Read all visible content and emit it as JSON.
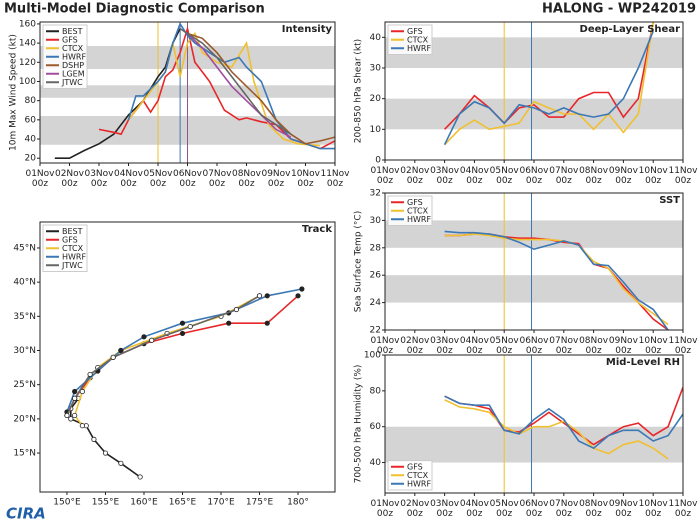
{
  "header": {
    "title": "Multi-Model Diagnostic Comparison",
    "storm": "HALONG - WP242019",
    "logo": "CIRA"
  },
  "chart_data": [
    {
      "type": "line",
      "title": "Intensity",
      "ylabel": "10m Max Wind Speed (kt)",
      "legend": "upper-left",
      "xlim": [
        0,
        240
      ],
      "ylim": [
        15,
        162
      ],
      "yticks": [
        20,
        40,
        60,
        80,
        100,
        120,
        140,
        160
      ],
      "bands": [
        [
          34,
          64
        ],
        [
          83,
          96
        ],
        [
          113,
          137
        ]
      ],
      "xticks": [
        {
          "value": 0,
          "label": "01Nov 00z"
        },
        {
          "value": 24,
          "label": "02Nov 00z"
        },
        {
          "value": 48,
          "label": "03Nov 00z"
        },
        {
          "value": 72,
          "label": "04Nov 00z"
        },
        {
          "value": 96,
          "label": "05Nov 00z"
        },
        {
          "value": 120,
          "label": "06Nov 00z"
        },
        {
          "value": 144,
          "label": "07Nov 00z"
        },
        {
          "value": 168,
          "label": "08Nov 00z"
        },
        {
          "value": 192,
          "label": "09Nov 00z"
        },
        {
          "value": 216,
          "label": "10Nov 00z"
        },
        {
          "value": 240,
          "label": "11Nov 00z"
        }
      ],
      "vlines": [
        {
          "x": 96,
          "color": "#f0c030"
        },
        {
          "x": 114,
          "color": "#3b78b5"
        },
        {
          "x": 120,
          "color": "#8a5a8a"
        }
      ],
      "series": [
        {
          "name": "BEST",
          "color": "#222222",
          "x": [
            12,
            24,
            36,
            48,
            60,
            72,
            84,
            96,
            102,
            108,
            114
          ],
          "values": [
            20,
            20,
            28,
            35,
            45,
            65,
            80,
            105,
            115,
            140,
            155
          ]
        },
        {
          "name": "GFS",
          "color": "#e8262a",
          "x": [
            48,
            60,
            66,
            72,
            84,
            90,
            96,
            102,
            108,
            114,
            120,
            126,
            132,
            138,
            150,
            162,
            168,
            180,
            192,
            204,
            216,
            228,
            240
          ],
          "values": [
            50,
            47,
            45,
            60,
            80,
            68,
            80,
            105,
            112,
            130,
            155,
            120,
            110,
            100,
            70,
            60,
            62,
            58,
            55,
            40,
            35,
            30,
            38
          ]
        },
        {
          "name": "CTCX",
          "color": "#f0c030",
          "x": [
            72,
            84,
            96,
            102,
            108,
            114,
            120,
            126,
            132,
            144,
            156,
            168,
            174,
            186,
            198,
            210,
            228
          ],
          "values": [
            60,
            80,
            100,
            110,
            140,
            105,
            140,
            150,
            130,
            120,
            115,
            140,
            100,
            55,
            40,
            35,
            33
          ]
        },
        {
          "name": "HWRF",
          "color": "#3b78b5",
          "x": [
            72,
            78,
            84,
            96,
            102,
            108,
            114,
            120,
            126,
            138,
            150,
            162,
            168,
            180,
            192,
            204,
            216,
            228,
            240
          ],
          "values": [
            60,
            85,
            85,
            100,
            110,
            140,
            160,
            148,
            140,
            130,
            120,
            125,
            115,
            100,
            60,
            40,
            35,
            30,
            30
          ]
        },
        {
          "name": "DSHP",
          "color": "#9c5a2a",
          "x": [
            120,
            132,
            144,
            156,
            168,
            180,
            192,
            204,
            216,
            228,
            240
          ],
          "values": [
            150,
            145,
            130,
            110,
            95,
            80,
            60,
            45,
            35,
            38,
            42
          ]
        },
        {
          "name": "LGEM",
          "color": "#a04ca0",
          "x": [
            120,
            132,
            144,
            156,
            168,
            180,
            192,
            204
          ],
          "values": [
            150,
            135,
            115,
            95,
            80,
            65,
            50,
            42
          ]
        },
        {
          "name": "JTWC",
          "color": "#666666",
          "x": [
            114,
            120,
            132,
            144,
            156,
            168,
            180,
            204
          ],
          "values": [
            155,
            150,
            140,
            125,
            105,
            85,
            65,
            45
          ]
        }
      ]
    },
    {
      "type": "line",
      "title": "Deep-Layer Shear",
      "ylabel": "200-850 hPa Shear (kt)",
      "legend": "upper-left",
      "xlim": [
        0,
        240
      ],
      "ylim": [
        0,
        45
      ],
      "yticks": [
        0,
        10,
        20,
        30,
        40
      ],
      "bands": [
        [
          10,
          20
        ],
        [
          30,
          40
        ]
      ],
      "xticks": [
        {
          "value": 0,
          "label": "01Nov 00z"
        },
        {
          "value": 24,
          "label": "02Nov 00z"
        },
        {
          "value": 48,
          "label": "03Nov 00z"
        },
        {
          "value": 72,
          "label": "04Nov 00z"
        },
        {
          "value": 96,
          "label": "05Nov 00z"
        },
        {
          "value": 120,
          "label": "06Nov 00z"
        },
        {
          "value": 144,
          "label": "07Nov 00z"
        },
        {
          "value": 168,
          "label": "08Nov 00z"
        },
        {
          "value": 192,
          "label": "09Nov 00z"
        },
        {
          "value": 216,
          "label": "10Nov 00z"
        },
        {
          "value": 240,
          "label": "11Nov 00z"
        }
      ],
      "vlines": [
        {
          "x": 96,
          "color": "#f0c030"
        },
        {
          "x": 118,
          "color": "#3b78b5"
        }
      ],
      "x": [
        48,
        60,
        72,
        84,
        96,
        108,
        120,
        132,
        144,
        156,
        168,
        180,
        192,
        204,
        216
      ],
      "series": [
        {
          "name": "GFS",
          "color": "#e8262a",
          "values": [
            10,
            15,
            21,
            17,
            12,
            17,
            18,
            14,
            14,
            20,
            22,
            22,
            14,
            20,
            45
          ]
        },
        {
          "name": "CTCX",
          "color": "#f0c030",
          "values": [
            5,
            10,
            13,
            10,
            11,
            12,
            19,
            17,
            15,
            15,
            10,
            15,
            9,
            15,
            45
          ]
        },
        {
          "name": "HWRF",
          "color": "#3b78b5",
          "values": [
            5,
            15,
            19,
            17,
            12,
            18,
            17,
            15,
            17,
            15,
            14,
            15,
            20,
            30,
            42
          ]
        }
      ]
    },
    {
      "type": "track",
      "title": "Track",
      "legend": "upper-left",
      "xlim": [
        146.5,
        184.8
      ],
      "ylim": [
        9.3,
        48.8
      ],
      "xticks": [
        {
          "value": 150,
          "label": "150°E"
        },
        {
          "value": 155,
          "label": "155°E"
        },
        {
          "value": 160,
          "label": "160°E"
        },
        {
          "value": 165,
          "label": "165°E"
        },
        {
          "value": 170,
          "label": "170°E"
        },
        {
          "value": 175,
          "label": "175°E"
        },
        {
          "value": 180,
          "label": "180°"
        }
      ],
      "yticks": [
        {
          "value": 15,
          "label": "15°N"
        },
        {
          "value": 20,
          "label": "20°N"
        },
        {
          "value": 25,
          "label": "25°N"
        },
        {
          "value": 30,
          "label": "30°N"
        },
        {
          "value": 35,
          "label": "35°N"
        },
        {
          "value": 40,
          "label": "40°N"
        },
        {
          "value": 45,
          "label": "45°N"
        }
      ],
      "series": [
        {
          "name": "BEST",
          "color": "#222222",
          "x": [
            159.5,
            157,
            155,
            153.5,
            152.5,
            150.5,
            150.5,
            151.5
          ],
          "values": [
            11.5,
            13.5,
            15,
            17,
            19,
            20,
            21.5,
            23
          ]
        },
        {
          "name": "GFS",
          "color": "#e8262a",
          "x": [
            150,
            151,
            153,
            156,
            160,
            165,
            171,
            176,
            180
          ],
          "values": [
            20.5,
            23,
            26,
            29,
            31,
            32.5,
            34,
            34,
            38
          ]
        },
        {
          "name": "CTCX",
          "color": "#f0c030",
          "x": [
            152,
            151,
            152,
            154,
            157,
            163,
            170,
            175
          ],
          "values": [
            19,
            20.5,
            24,
            27.5,
            30,
            32.5,
            35,
            38
          ]
        },
        {
          "name": "HWRF",
          "color": "#3b78b5",
          "x": [
            150,
            151,
            154,
            157,
            160,
            165,
            171,
            176,
            180.5
          ],
          "values": [
            21,
            24,
            27,
            30,
            32,
            34,
            35.5,
            38,
            39
          ]
        },
        {
          "name": "JTWC",
          "color": "#666666",
          "x": [
            150,
            151,
            153,
            156,
            161,
            166,
            172,
            175
          ],
          "values": [
            20.5,
            23,
            26.5,
            29,
            31.5,
            33.5,
            36,
            38
          ]
        }
      ]
    },
    {
      "type": "line",
      "title": "SST",
      "ylabel": "Sea Surface Temp (°C)",
      "legend": "upper-left",
      "xlim": [
        0,
        240
      ],
      "ylim": [
        22,
        32
      ],
      "yticks": [
        22,
        24,
        26,
        28,
        30,
        32
      ],
      "bands": [
        [
          24,
          26
        ],
        [
          28,
          30
        ]
      ],
      "xticks": [
        {
          "value": 0,
          "label": "01Nov 00z"
        },
        {
          "value": 24,
          "label": "02Nov 00z"
        },
        {
          "value": 48,
          "label": "03Nov 00z"
        },
        {
          "value": 72,
          "label": "04Nov 00z"
        },
        {
          "value": 96,
          "label": "05Nov 00z"
        },
        {
          "value": 120,
          "label": "06Nov 00z"
        },
        {
          "value": 144,
          "label": "07Nov 00z"
        },
        {
          "value": 168,
          "label": "08Nov 00z"
        },
        {
          "value": 192,
          "label": "09Nov 00z"
        },
        {
          "value": 216,
          "label": "10Nov 00z"
        },
        {
          "value": 240,
          "label": "11Nov 00z"
        }
      ],
      "vlines": [
        {
          "x": 96,
          "color": "#f0c030"
        },
        {
          "x": 118,
          "color": "#3b78b5"
        }
      ],
      "x": [
        48,
        60,
        72,
        84,
        96,
        108,
        120,
        132,
        144,
        156,
        168,
        180,
        192,
        204,
        216,
        228
      ],
      "series": [
        {
          "name": "GFS",
          "color": "#e8262a",
          "values": [
            28.9,
            28.9,
            29.0,
            29.0,
            28.8,
            28.7,
            28.7,
            28.6,
            28.4,
            28.3,
            26.8,
            26.5,
            25.2,
            24.0,
            22.8,
            22.0
          ]
        },
        {
          "name": "CTCX",
          "color": "#f0c030",
          "values": [
            28.9,
            28.9,
            29.0,
            28.9,
            28.7,
            28.6,
            28.6,
            28.6,
            28.5,
            28.2,
            27.0,
            26.5,
            25.0,
            24.0,
            23.2,
            22.4
          ]
        },
        {
          "name": "HWRF",
          "color": "#3b78b5",
          "values": [
            29.2,
            29.1,
            29.1,
            29.0,
            28.8,
            28.4,
            27.9,
            28.2,
            28.5,
            28.2,
            26.8,
            26.7,
            25.5,
            24.2,
            23.5,
            22.0
          ]
        }
      ]
    },
    {
      "type": "line",
      "title": "Mid-Level RH",
      "ylabel": "700-500 hPa Humidity (%)",
      "legend": "lower-left",
      "xlim": [
        0,
        240
      ],
      "ylim": [
        23,
        100
      ],
      "yticks": [
        40,
        60,
        80,
        100
      ],
      "bands": [
        [
          40,
          60
        ]
      ],
      "xticks": [
        {
          "value": 0,
          "label": "01Nov 00z"
        },
        {
          "value": 24,
          "label": "02Nov 00z"
        },
        {
          "value": 48,
          "label": "03Nov 00z"
        },
        {
          "value": 72,
          "label": "04Nov 00z"
        },
        {
          "value": 96,
          "label": "05Nov 00z"
        },
        {
          "value": 120,
          "label": "06Nov 00z"
        },
        {
          "value": 144,
          "label": "07Nov 00z"
        },
        {
          "value": 168,
          "label": "08Nov 00z"
        },
        {
          "value": 192,
          "label": "09Nov 00z"
        },
        {
          "value": 216,
          "label": "10Nov 00z"
        },
        {
          "value": 240,
          "label": "11Nov 00z"
        }
      ],
      "vlines": [
        {
          "x": 96,
          "color": "#f0c030"
        },
        {
          "x": 118,
          "color": "#3b78b5"
        }
      ],
      "x": [
        48,
        60,
        72,
        84,
        96,
        108,
        120,
        132,
        144,
        156,
        168,
        180,
        192,
        204,
        216,
        228,
        240
      ],
      "series": [
        {
          "name": "GFS",
          "color": "#e8262a",
          "values": [
            77,
            73,
            72,
            70,
            58,
            57,
            62,
            68,
            62,
            56,
            50,
            55,
            60,
            62,
            55,
            60,
            82
          ]
        },
        {
          "name": "CTCX",
          "color": "#f0c030",
          "values": [
            75,
            71,
            70,
            68,
            60,
            56,
            60,
            60,
            63,
            57,
            48,
            45,
            50,
            52,
            48,
            42,
            null
          ]
        },
        {
          "name": "HWRF",
          "color": "#3b78b5",
          "values": [
            77,
            73,
            72,
            72,
            58,
            56,
            64,
            70,
            64,
            52,
            48,
            55,
            58,
            58,
            52,
            55,
            67
          ]
        }
      ]
    }
  ]
}
